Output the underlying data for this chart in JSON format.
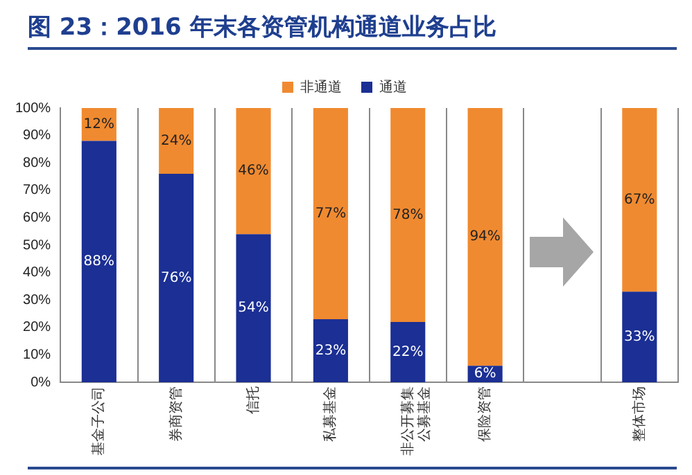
{
  "chart_data": {
    "type": "bar",
    "title": "图 23：2016 年末各资管机构通道业务占比",
    "stacked": true,
    "categories": [
      "基金子公司",
      "券商资管",
      "信托",
      "私募基金",
      [
        "非公开募集",
        "公募基金"
      ],
      "保险资管",
      null,
      "整体市场"
    ],
    "series": [
      {
        "name": "通道",
        "color": "#1b2f94",
        "values": [
          88,
          76,
          54,
          23,
          22,
          6,
          null,
          33
        ],
        "value_labels": [
          "88%",
          "76%",
          "54%",
          "23%",
          "22%",
          "6%",
          null,
          "33%"
        ]
      },
      {
        "name": "非通道",
        "color": "#f08a30",
        "values": [
          12,
          24,
          46,
          77,
          78,
          94,
          null,
          67
        ],
        "value_labels": [
          "12%",
          "24%",
          "46%",
          "77%",
          "78%",
          "94%",
          null,
          "67%"
        ]
      }
    ],
    "ylim": [
      0,
      100
    ],
    "yticks": [
      {
        "value": 0,
        "label": "0%"
      },
      {
        "value": 10,
        "label": "10%"
      },
      {
        "value": 20,
        "label": "20%"
      },
      {
        "value": 30,
        "label": "30%"
      },
      {
        "value": 40,
        "label": "40%"
      },
      {
        "value": 50,
        "label": "50%"
      },
      {
        "value": 60,
        "label": "60%"
      },
      {
        "value": 70,
        "label": "70%"
      },
      {
        "value": 80,
        "label": "80%"
      },
      {
        "value": 90,
        "label": "90%"
      },
      {
        "value": 100,
        "label": "100%"
      }
    ],
    "grid": "x",
    "legend": "top"
  }
}
